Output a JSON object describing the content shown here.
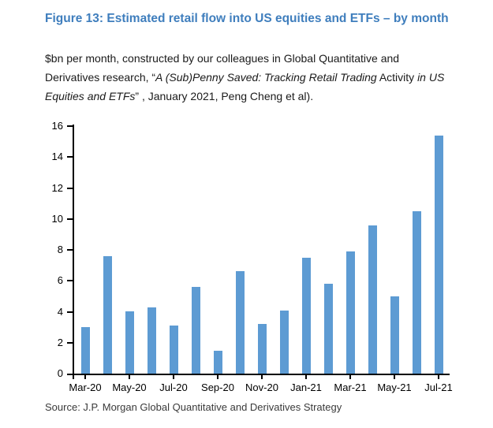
{
  "figure": {
    "title": "Figure 13: Estimated retail flow into US equities and ETFs – by month",
    "subtitle_segments": {
      "s1": "$bn per month, constructed by our colleagues in Global Quantitative and Derivatives research, “",
      "s2_italic": "A (Sub)Penny Saved: Tracking Retail Trading",
      "s3": " Activity ",
      "s4_italic": "in US Equities and ETFs",
      "s5": "” , January 2021, Peng Cheng et al)."
    },
    "source": "Source: J.P. Morgan Global Quantitative and Derivatives Strategy"
  },
  "colors": {
    "title_blue": "#3F7EBD",
    "bar_blue": "#5D9BD3",
    "axis_black": "#000000",
    "text_black": "#1A1A1A"
  },
  "chart_data": {
    "type": "bar",
    "title": "Estimated retail flow into US equities and ETFs – by month",
    "unit": "$bn per month",
    "categories": [
      "Mar-20",
      "Apr-20",
      "May-20",
      "Jun-20",
      "Jul-20",
      "Aug-20",
      "Sep-20",
      "Oct-20",
      "Nov-20",
      "Dec-20",
      "Jan-21",
      "Feb-21",
      "Mar-21",
      "Apr-21",
      "May-21",
      "Jun-21",
      "Jul-21"
    ],
    "values": [
      3.0,
      7.6,
      4.0,
      4.3,
      3.1,
      5.6,
      1.5,
      6.6,
      3.2,
      4.1,
      7.5,
      5.8,
      7.9,
      9.6,
      5.0,
      10.5,
      15.4
    ],
    "x_tick_labels": [
      "Mar-20",
      "May-20",
      "Jul-20",
      "Sep-20",
      "Nov-20",
      "Jan-21",
      "Mar-21",
      "May-21",
      "Jul-21"
    ],
    "y_tick_labels": [
      "0",
      "2",
      "4",
      "6",
      "8",
      "10",
      "12",
      "14",
      "16"
    ],
    "xlabel": "",
    "ylabel": "",
    "ylim": [
      0,
      16
    ],
    "ytick_step": 2,
    "grid": false,
    "legend": false
  }
}
